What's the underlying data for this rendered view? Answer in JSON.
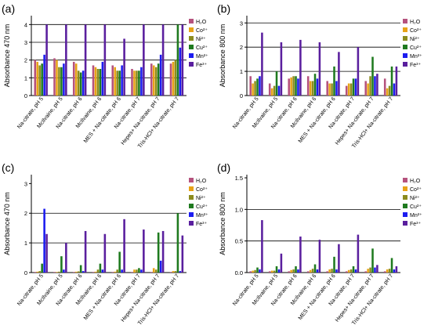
{
  "figure": {
    "series_labels": [
      "H₂O",
      "Co²⁺",
      "Ni²⁺",
      "Cu²⁺",
      "Mn²⁺",
      "Fe³⁺"
    ],
    "series_colors": [
      "#b5527d",
      "#e8a317",
      "#8c8c1e",
      "#1f7a1f",
      "#1c1cf0",
      "#5a1f9e"
    ],
    "categories": [
      "Na-citrate, pH 5",
      "McIlvaine, pH 5",
      "Na-citrate, pH 6",
      "McIlvaine, pH 6",
      "MES + Na-citrate, pH 6",
      "Na-citrate, pH 7",
      "Hepes+ Na-citrate, pH 7",
      "Tris-HCl+ Na-citrate, pH 7"
    ]
  },
  "chart_data": [
    {
      "panel": "(a)",
      "type": "bar",
      "ylabel": "Absorbance 470 nm",
      "ylim": [
        0,
        4.5
      ],
      "yticks": [
        0,
        1,
        2,
        3,
        4
      ],
      "ytick_labels": [
        "0",
        "1",
        "2",
        "3",
        "4"
      ],
      "hlines": [
        1,
        2,
        3,
        4
      ],
      "legend": "top-right",
      "series": [
        {
          "name": "H₂O",
          "values": [
            2.0,
            2.1,
            1.9,
            1.7,
            1.7,
            1.5,
            1.8,
            1.8
          ]
        },
        {
          "name": "Co²⁺",
          "values": [
            1.9,
            2.0,
            1.8,
            1.6,
            1.6,
            1.4,
            1.7,
            1.9
          ]
        },
        {
          "name": "Ni²⁺",
          "values": [
            1.7,
            1.6,
            1.4,
            1.5,
            1.4,
            1.4,
            1.6,
            2.0
          ]
        },
        {
          "name": "Cu²⁺",
          "values": [
            1.8,
            1.6,
            1.3,
            1.5,
            1.4,
            1.4,
            1.8,
            4.0
          ]
        },
        {
          "name": "Mn²⁺",
          "values": [
            2.3,
            1.8,
            1.4,
            1.9,
            1.7,
            1.6,
            2.3,
            2.7
          ]
        },
        {
          "name": "Fe³⁺",
          "values": [
            4.0,
            4.0,
            4.0,
            4.0,
            3.2,
            4.0,
            4.0,
            4.0
          ]
        }
      ]
    },
    {
      "panel": "(b)",
      "type": "bar",
      "ylabel": "Absorbance 800 nm",
      "ylim": [
        0,
        3.3
      ],
      "yticks": [
        0,
        1,
        2,
        3
      ],
      "ytick_labels": [
        "0",
        "1",
        "2",
        "3"
      ],
      "hlines": [
        1,
        2,
        3
      ],
      "legend": "top-right",
      "series": [
        {
          "name": "H₂O",
          "values": [
            0.8,
            0.5,
            0.7,
            0.8,
            0.6,
            0.4,
            0.6,
            0.7
          ]
        },
        {
          "name": "Co²⁺",
          "values": [
            0.5,
            0.3,
            0.75,
            0.6,
            0.5,
            0.5,
            0.5,
            0.3
          ]
        },
        {
          "name": "Ni²⁺",
          "values": [
            0.6,
            0.4,
            0.8,
            0.6,
            0.5,
            0.5,
            0.8,
            0.4
          ]
        },
        {
          "name": "Cu²⁺",
          "values": [
            0.7,
            1.0,
            0.8,
            0.9,
            1.2,
            0.7,
            1.6,
            1.2
          ]
        },
        {
          "name": "Mn²⁺",
          "values": [
            0.8,
            0.4,
            0.7,
            0.7,
            0.6,
            0.7,
            0.8,
            0.5
          ]
        },
        {
          "name": "Fe³⁺",
          "values": [
            2.6,
            2.2,
            2.3,
            2.2,
            1.8,
            2.0,
            0.9,
            1.2
          ]
        }
      ]
    },
    {
      "panel": "(c)",
      "type": "bar",
      "ylabel": "Absorbance 470 nm",
      "ylim": [
        0,
        3.3
      ],
      "yticks": [
        0,
        1,
        2,
        3
      ],
      "ytick_labels": [
        "0",
        "1",
        "2",
        "3"
      ],
      "hlines": [
        1,
        2
      ],
      "legend": "top-right",
      "series": [
        {
          "name": "H₂O",
          "values": [
            0.02,
            0.02,
            0.02,
            0.02,
            0.02,
            0.02,
            0.02,
            0.02
          ]
        },
        {
          "name": "Co²⁺",
          "values": [
            0.03,
            0.02,
            0.03,
            0.03,
            0.03,
            0.1,
            0.15,
            0.05
          ]
        },
        {
          "name": "Ni²⁺",
          "values": [
            0.05,
            0.03,
            0.04,
            0.1,
            0.1,
            0.1,
            0.1,
            0.05
          ]
        },
        {
          "name": "Cu²⁺",
          "values": [
            0.3,
            0.55,
            0.25,
            0.3,
            0.7,
            0.15,
            1.35,
            2.0
          ]
        },
        {
          "name": "Mn²⁺",
          "values": [
            2.15,
            0.1,
            0.05,
            0.1,
            0.1,
            0.1,
            0.4,
            0.05
          ]
        },
        {
          "name": "Fe³⁺",
          "values": [
            1.3,
            1.0,
            1.4,
            1.3,
            1.8,
            1.45,
            1.4,
            1.25
          ]
        }
      ]
    },
    {
      "panel": "(d)",
      "type": "bar",
      "ylabel": "Absorbance 800 nm",
      "ylim": [
        0,
        1.55
      ],
      "yticks": [
        0,
        0.5,
        1,
        1.5
      ],
      "ytick_labels": [
        "0.0",
        "0.5",
        "1.0",
        "1.5"
      ],
      "hlines": [
        0.5,
        1.0
      ],
      "legend": "top-right",
      "series": [
        {
          "name": "H₂O",
          "values": [
            0.02,
            0.02,
            0.02,
            0.02,
            0.02,
            0.02,
            0.02,
            0.02
          ]
        },
        {
          "name": "Co²⁺",
          "values": [
            0.03,
            0.03,
            0.04,
            0.04,
            0.05,
            0.04,
            0.06,
            0.05
          ]
        },
        {
          "name": "Ni²⁺",
          "values": [
            0.04,
            0.03,
            0.05,
            0.06,
            0.06,
            0.05,
            0.08,
            0.06
          ]
        },
        {
          "name": "Cu²⁺",
          "values": [
            0.08,
            0.1,
            0.1,
            0.13,
            0.25,
            0.1,
            0.38,
            0.23
          ]
        },
        {
          "name": "Mn²⁺",
          "values": [
            0.05,
            0.05,
            0.05,
            0.05,
            0.05,
            0.05,
            0.08,
            0.05
          ]
        },
        {
          "name": "Fe³⁺",
          "values": [
            0.83,
            0.3,
            0.57,
            0.52,
            0.45,
            0.6,
            0.12,
            0.1
          ]
        }
      ]
    }
  ]
}
